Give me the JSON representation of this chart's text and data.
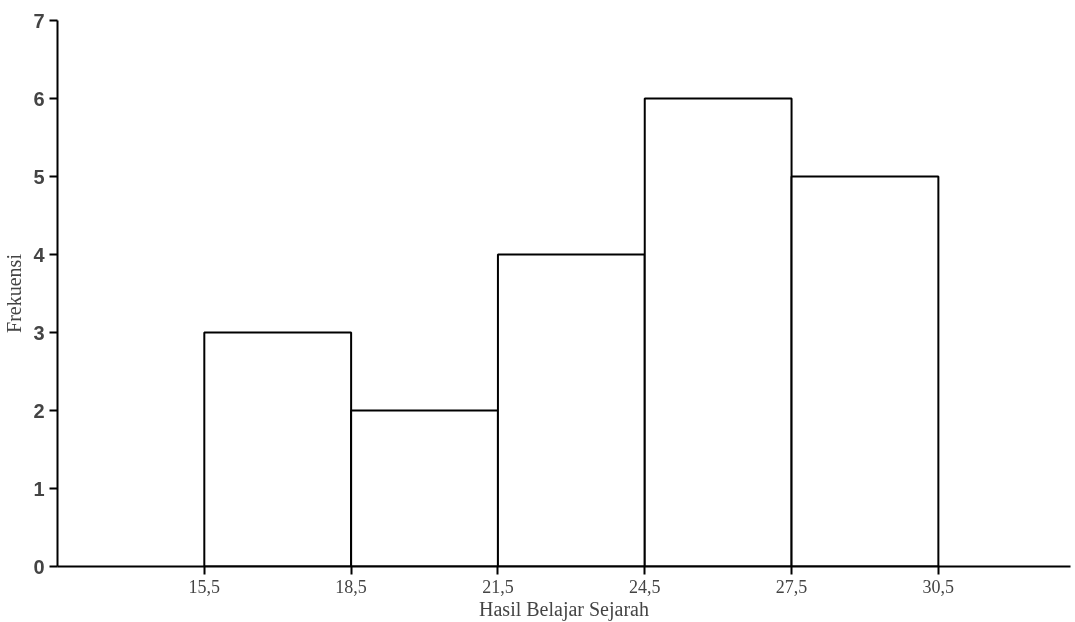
{
  "chart_data": {
    "type": "histogram",
    "xlabel": "Hasil Belajar Sejarah",
    "ylabel": "Frekuensi",
    "bins": [
      15.5,
      18.5,
      21.5,
      24.5,
      27.5,
      30.5
    ],
    "values": [
      3,
      2,
      4,
      6,
      5
    ],
    "color": "#ffffff",
    "xlim": [
      12.5,
      33.2
    ],
    "xticks": [
      {
        "value": 15.5,
        "label": "15,5"
      },
      {
        "value": 18.5,
        "label": "18,5"
      },
      {
        "value": 21.5,
        "label": "21,5"
      },
      {
        "value": 24.5,
        "label": "24,5"
      },
      {
        "value": 27.5,
        "label": "27,5"
      },
      {
        "value": 30.5,
        "label": "30,5"
      }
    ],
    "ylim": [
      0,
      7
    ],
    "yticks": [
      0,
      1,
      2,
      3,
      4,
      5,
      6,
      7
    ],
    "grid": false
  }
}
